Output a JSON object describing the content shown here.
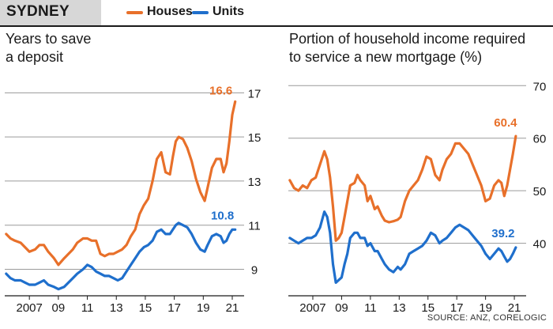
{
  "header": {
    "region": "SYDNEY",
    "legend": [
      {
        "label": "Houses",
        "color": "#e8702a"
      },
      {
        "label": "Units",
        "color": "#1f6fcc"
      }
    ]
  },
  "source": "SOURCE: ANZ, CORELOGIC",
  "colors": {
    "houses": "#e8702a",
    "units": "#1f6fcc",
    "grid": "#9a9a9a",
    "axis": "#1a1a1a"
  },
  "chart_data": [
    {
      "type": "line",
      "title_lines": [
        "Years to save",
        "a deposit"
      ],
      "xlabel": "",
      "ylabel": "",
      "xlim": [
        2005.3,
        2021.6
      ],
      "ylim": [
        7.8,
        17.8
      ],
      "y_ticks": [
        9,
        11,
        13,
        15,
        17
      ],
      "x_ticks": [
        {
          "value": 2007,
          "label": "2007"
        },
        {
          "value": 2009,
          "label": "09"
        },
        {
          "value": 2011,
          "label": "11"
        },
        {
          "value": 2013,
          "label": "13"
        },
        {
          "value": 2015,
          "label": "15"
        },
        {
          "value": 2017,
          "label": "17"
        },
        {
          "value": 2019,
          "label": "19"
        },
        {
          "value": 2021,
          "label": "21"
        }
      ],
      "gridlines": true,
      "series": [
        {
          "name": "Houses",
          "end_label": "16.6",
          "x": [
            2005.4,
            2005.7,
            2006.0,
            2006.4,
            2006.7,
            2007.0,
            2007.4,
            2007.7,
            2008.0,
            2008.3,
            2008.7,
            2009.0,
            2009.4,
            2009.7,
            2010.0,
            2010.3,
            2010.7,
            2011.0,
            2011.3,
            2011.6,
            2011.9,
            2012.2,
            2012.5,
            2012.8,
            2013.1,
            2013.4,
            2013.7,
            2014.0,
            2014.3,
            2014.6,
            2014.9,
            2015.2,
            2015.5,
            2015.8,
            2016.1,
            2016.4,
            2016.7,
            2016.9,
            2017.1,
            2017.3,
            2017.6,
            2017.9,
            2018.2,
            2018.5,
            2018.8,
            2019.1,
            2019.3,
            2019.6,
            2019.9,
            2020.2,
            2020.4,
            2020.6,
            2020.8,
            2021.0,
            2021.2
          ],
          "values": [
            10.6,
            10.4,
            10.3,
            10.2,
            10.0,
            9.8,
            9.9,
            10.1,
            10.1,
            9.8,
            9.5,
            9.2,
            9.5,
            9.7,
            9.9,
            10.2,
            10.4,
            10.4,
            10.3,
            10.3,
            9.7,
            9.6,
            9.7,
            9.7,
            9.8,
            9.9,
            10.1,
            10.5,
            10.8,
            11.5,
            11.9,
            12.2,
            13.0,
            14.0,
            14.3,
            13.4,
            13.3,
            14.1,
            14.8,
            15.0,
            14.9,
            14.5,
            13.9,
            13.1,
            12.5,
            12.1,
            12.7,
            13.6,
            14.0,
            14.0,
            13.4,
            13.8,
            14.8,
            16.0,
            16.6
          ]
        },
        {
          "name": "Units",
          "end_label": "10.8",
          "x": [
            2005.4,
            2005.7,
            2006.0,
            2006.4,
            2006.7,
            2007.0,
            2007.4,
            2007.7,
            2008.0,
            2008.3,
            2008.7,
            2009.0,
            2009.4,
            2009.7,
            2010.0,
            2010.3,
            2010.7,
            2011.0,
            2011.3,
            2011.6,
            2011.9,
            2012.2,
            2012.5,
            2012.8,
            2013.1,
            2013.4,
            2013.7,
            2014.0,
            2014.3,
            2014.6,
            2014.9,
            2015.2,
            2015.5,
            2015.8,
            2016.1,
            2016.4,
            2016.7,
            2016.9,
            2017.1,
            2017.3,
            2017.6,
            2017.9,
            2018.2,
            2018.5,
            2018.8,
            2019.1,
            2019.3,
            2019.6,
            2019.9,
            2020.2,
            2020.4,
            2020.6,
            2020.8,
            2021.0,
            2021.2
          ],
          "values": [
            8.8,
            8.6,
            8.5,
            8.5,
            8.4,
            8.3,
            8.3,
            8.4,
            8.5,
            8.3,
            8.2,
            8.1,
            8.2,
            8.4,
            8.6,
            8.8,
            9.0,
            9.2,
            9.1,
            8.9,
            8.8,
            8.7,
            8.7,
            8.6,
            8.5,
            8.6,
            8.9,
            9.2,
            9.5,
            9.8,
            10.0,
            10.1,
            10.3,
            10.7,
            10.8,
            10.6,
            10.6,
            10.8,
            11.0,
            11.1,
            11.0,
            10.9,
            10.6,
            10.2,
            9.9,
            9.8,
            10.1,
            10.5,
            10.6,
            10.5,
            10.2,
            10.3,
            10.6,
            10.8,
            10.8
          ]
        }
      ]
    },
    {
      "type": "line",
      "title_lines": [
        "Portion of household income required",
        "to service a new mortgage (%)"
      ],
      "xlabel": "",
      "ylabel": "",
      "xlim": [
        2005.3,
        2021.6
      ],
      "ylim": [
        30,
        72
      ],
      "y_ticks": [
        40,
        50,
        60,
        70
      ],
      "x_ticks": [
        {
          "value": 2007,
          "label": "2007"
        },
        {
          "value": 2009,
          "label": "09"
        },
        {
          "value": 2011,
          "label": "11"
        },
        {
          "value": 2013,
          "label": "13"
        },
        {
          "value": 2015,
          "label": "15"
        },
        {
          "value": 2017,
          "label": "17"
        },
        {
          "value": 2019,
          "label": "19"
        },
        {
          "value": 2021,
          "label": "21"
        }
      ],
      "gridlines": true,
      "series": [
        {
          "name": "Houses",
          "end_label": "60.4",
          "x": [
            2005.4,
            2005.7,
            2006.0,
            2006.3,
            2006.6,
            2006.9,
            2007.2,
            2007.5,
            2007.8,
            2008.0,
            2008.2,
            2008.4,
            2008.6,
            2008.8,
            2009.0,
            2009.2,
            2009.4,
            2009.6,
            2009.9,
            2010.1,
            2010.3,
            2010.6,
            2010.8,
            2011.0,
            2011.3,
            2011.5,
            2011.8,
            2012.0,
            2012.3,
            2012.6,
            2012.9,
            2013.1,
            2013.4,
            2013.7,
            2014.0,
            2014.3,
            2014.6,
            2014.9,
            2015.2,
            2015.5,
            2015.8,
            2016.0,
            2016.3,
            2016.6,
            2016.9,
            2017.2,
            2017.5,
            2017.8,
            2018.1,
            2018.4,
            2018.7,
            2019.0,
            2019.3,
            2019.6,
            2019.9,
            2020.1,
            2020.3,
            2020.5,
            2020.7,
            2020.9,
            2021.1
          ],
          "values": [
            52,
            50.5,
            50,
            51,
            50.5,
            52,
            52.5,
            55,
            57.5,
            56,
            52.5,
            47,
            40.5,
            41,
            42,
            45,
            48,
            51,
            51.5,
            53,
            52,
            51,
            48,
            49,
            46.5,
            47,
            45.2,
            44.3,
            44,
            44.2,
            44.5,
            45,
            48,
            50,
            51,
            52,
            54,
            56.5,
            56,
            53,
            52,
            54,
            56,
            57,
            59,
            59,
            58,
            57,
            55,
            53,
            51,
            48,
            48.5,
            51,
            52,
            51.5,
            49,
            51,
            54,
            57,
            60.4
          ]
        },
        {
          "name": "Units",
          "end_label": "39.2",
          "x": [
            2005.4,
            2005.7,
            2006.0,
            2006.3,
            2006.6,
            2006.9,
            2007.2,
            2007.5,
            2007.8,
            2008.0,
            2008.2,
            2008.4,
            2008.6,
            2008.8,
            2009.0,
            2009.2,
            2009.4,
            2009.6,
            2009.9,
            2010.1,
            2010.3,
            2010.6,
            2010.8,
            2011.0,
            2011.3,
            2011.5,
            2011.8,
            2012.0,
            2012.3,
            2012.6,
            2012.9,
            2013.1,
            2013.4,
            2013.7,
            2014.0,
            2014.3,
            2014.6,
            2014.9,
            2015.2,
            2015.5,
            2015.8,
            2016.0,
            2016.3,
            2016.6,
            2016.9,
            2017.2,
            2017.5,
            2017.8,
            2018.1,
            2018.4,
            2018.7,
            2019.0,
            2019.3,
            2019.6,
            2019.9,
            2020.1,
            2020.3,
            2020.5,
            2020.7,
            2020.9,
            2021.1
          ],
          "values": [
            41,
            40.5,
            40,
            40.5,
            41,
            41,
            41.5,
            43,
            46,
            45,
            42,
            36,
            32.5,
            33,
            33.5,
            36,
            38,
            41,
            42,
            42,
            41,
            41,
            39.5,
            40,
            38.5,
            38.5,
            37,
            36,
            35,
            34.5,
            35.5,
            35,
            36,
            38,
            38.5,
            39,
            39.5,
            40.5,
            42,
            41.5,
            40,
            40.5,
            41,
            42,
            43,
            43.5,
            43,
            42.5,
            41.5,
            40.5,
            39.5,
            38,
            37,
            38,
            39,
            38.5,
            37.5,
            36.5,
            37,
            38,
            39.2
          ]
        }
      ]
    }
  ]
}
